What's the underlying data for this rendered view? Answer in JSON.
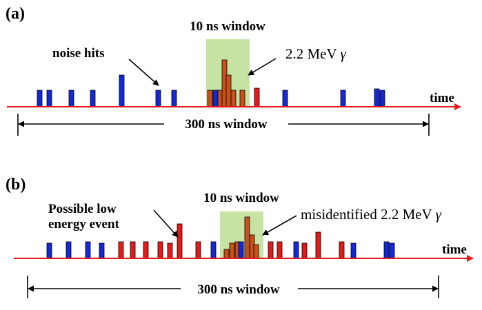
{
  "colors": {
    "noise_hit": "#1428d8",
    "red_hit": "#e41a1a",
    "gamma_hit": "#c8501e",
    "window_fill": "#c6e3a4",
    "time_axis": "#e41a1a"
  },
  "panel_a": {
    "tag": "(a)",
    "small_window_label": "10 ns window",
    "noise_label": "noise hits",
    "gamma_label": "2.2 MeV ",
    "gamma_symbol": "γ",
    "time_label": "time",
    "large_window_label": "300 ns window"
  },
  "panel_b": {
    "tag": "(b)",
    "small_window_label": "10 ns window",
    "event_label_line1": "Possible low",
    "event_label_line2": "energy event",
    "gamma_label": "misidentified 2.2 MeV ",
    "gamma_symbol": "γ",
    "time_label": "time",
    "large_window_label": "300 ns window"
  }
}
